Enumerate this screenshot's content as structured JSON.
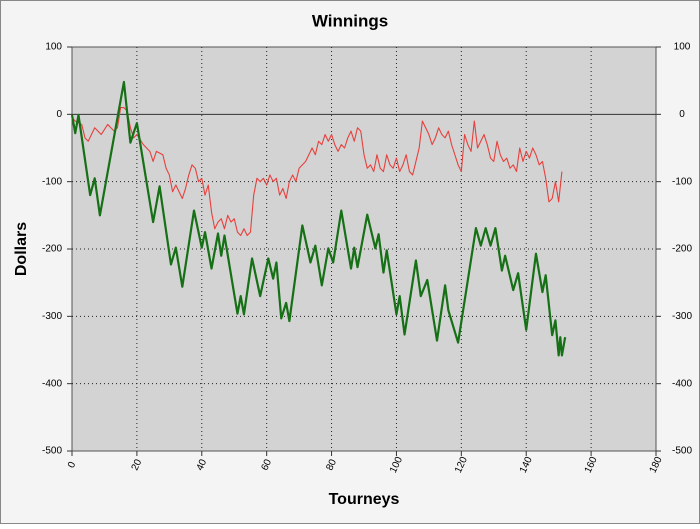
{
  "chart_data": {
    "type": "line",
    "title": "Winnings",
    "xlabel": "Tourneys",
    "ylabel": "Dollars",
    "xlim": [
      0,
      180
    ],
    "xticks": [
      0,
      20,
      40,
      60,
      80,
      100,
      120,
      140,
      160,
      180
    ],
    "ylim": [
      -500,
      100
    ],
    "yticks": [
      -500,
      -400,
      -300,
      -200,
      -100,
      0,
      100
    ],
    "y2lim": [
      -500,
      100
    ],
    "y2ticks": [
      -500,
      -400,
      -300,
      -200,
      -100,
      0,
      100
    ],
    "grid": true,
    "series": [
      {
        "color": "#e8403c",
        "x": [
          0,
          1,
          3,
          4,
          5,
          7,
          9,
          11,
          13,
          14,
          15,
          16,
          17,
          18,
          19,
          20,
          22,
          24,
          25,
          26,
          28,
          29,
          30,
          31,
          32,
          34,
          35,
          36,
          37,
          38,
          39,
          40,
          41,
          42,
          43,
          44,
          45,
          46,
          47,
          48,
          49,
          50,
          51,
          52,
          53,
          54,
          55,
          56,
          57,
          58,
          59,
          60,
          61,
          62,
          63,
          64,
          65,
          66,
          67,
          68,
          69,
          70,
          72,
          74,
          75,
          76,
          77,
          78,
          79,
          80,
          81,
          82,
          83,
          84,
          85,
          86,
          87,
          88,
          89,
          90,
          91,
          92,
          93,
          94,
          95,
          96,
          97,
          98,
          99,
          100,
          101,
          102,
          103,
          104,
          105,
          106,
          107,
          108,
          109,
          110,
          111,
          112,
          113,
          114,
          115,
          116,
          117,
          118,
          119,
          120,
          121,
          122,
          123,
          124,
          125,
          126,
          127,
          128,
          129,
          130,
          131,
          132,
          133,
          134,
          135,
          136,
          137,
          138,
          139,
          140,
          141,
          142,
          143,
          144,
          145,
          146,
          147,
          148,
          149,
          150,
          151
        ],
        "values": [
          -5,
          -10,
          -15,
          -35,
          -40,
          -20,
          -30,
          -15,
          -25,
          -20,
          10,
          10,
          5,
          -20,
          -35,
          -30,
          -45,
          -55,
          -70,
          -55,
          -60,
          -80,
          -90,
          -115,
          -105,
          -125,
          -110,
          -90,
          -75,
          -80,
          -100,
          -95,
          -120,
          -105,
          -145,
          -170,
          -160,
          -155,
          -170,
          -150,
          -160,
          -155,
          -175,
          -180,
          -170,
          -180,
          -175,
          -120,
          -95,
          -100,
          -95,
          -105,
          -90,
          -100,
          -95,
          -120,
          -110,
          -125,
          -100,
          -90,
          -100,
          -80,
          -70,
          -50,
          -60,
          -40,
          -45,
          -30,
          -40,
          -30,
          -45,
          -55,
          -45,
          -50,
          -35,
          -25,
          -40,
          -20,
          -25,
          -60,
          -80,
          -75,
          -85,
          -60,
          -80,
          -85,
          -60,
          -75,
          -80,
          -65,
          -85,
          -75,
          -60,
          -85,
          -90,
          -70,
          -50,
          -10,
          -20,
          -30,
          -45,
          -35,
          -20,
          -30,
          -35,
          -25,
          -45,
          -60,
          -75,
          -85,
          -30,
          -45,
          -55,
          -10,
          -50,
          -40,
          -30,
          -45,
          -65,
          -70,
          -40,
          -60,
          -70,
          -65,
          -80,
          -75,
          -85,
          -50,
          -70,
          -55,
          -65,
          -50,
          -60,
          -75,
          -70,
          -95,
          -130,
          -125,
          -100,
          -130,
          -85
        ]
      },
      {
        "color": "#167016",
        "x": [
          0,
          1,
          2,
          5.6,
          7,
          8.6,
          16,
          18,
          20,
          25,
          27,
          30.5,
          32,
          34,
          37.6,
          40,
          41,
          43,
          45,
          46,
          47,
          51,
          52,
          53,
          55.5,
          58,
          60.5,
          62,
          63,
          64.5,
          66,
          67,
          71,
          73.5,
          75,
          77,
          79,
          80.5,
          83,
          86,
          87,
          88,
          91,
          93.5,
          94.5,
          96,
          97,
          100,
          101,
          102.5,
          106,
          107.5,
          109.5,
          112.5,
          115,
          116,
          119,
          124.5,
          126,
          127.5,
          129,
          130.5,
          132.5,
          133.5,
          136,
          137.5,
          140,
          143,
          145,
          146,
          148,
          149,
          150,
          150.5,
          151,
          152
        ],
        "values": [
          -1,
          -28,
          -1,
          -120,
          -95,
          -150,
          48,
          -42,
          -13,
          -160,
          -107,
          -223,
          -198,
          -256,
          -143,
          -198,
          -175,
          -229,
          -177,
          -210,
          -180,
          -296,
          -270,
          -297,
          -214,
          -270,
          -214,
          -244,
          -220,
          -303,
          -280,
          -307,
          -165,
          -220,
          -195,
          -254,
          -199,
          -220,
          -143,
          -229,
          -198,
          -227,
          -149,
          -199,
          -178,
          -235,
          -202,
          -297,
          -270,
          -327,
          -217,
          -270,
          -246,
          -336,
          -254,
          -291,
          -339,
          -169,
          -195,
          -169,
          -195,
          -169,
          -232,
          -210,
          -261,
          -236,
          -320,
          -207,
          -264,
          -239,
          -328,
          -306,
          -358,
          -331,
          -358,
          -331
        ]
      }
    ]
  }
}
